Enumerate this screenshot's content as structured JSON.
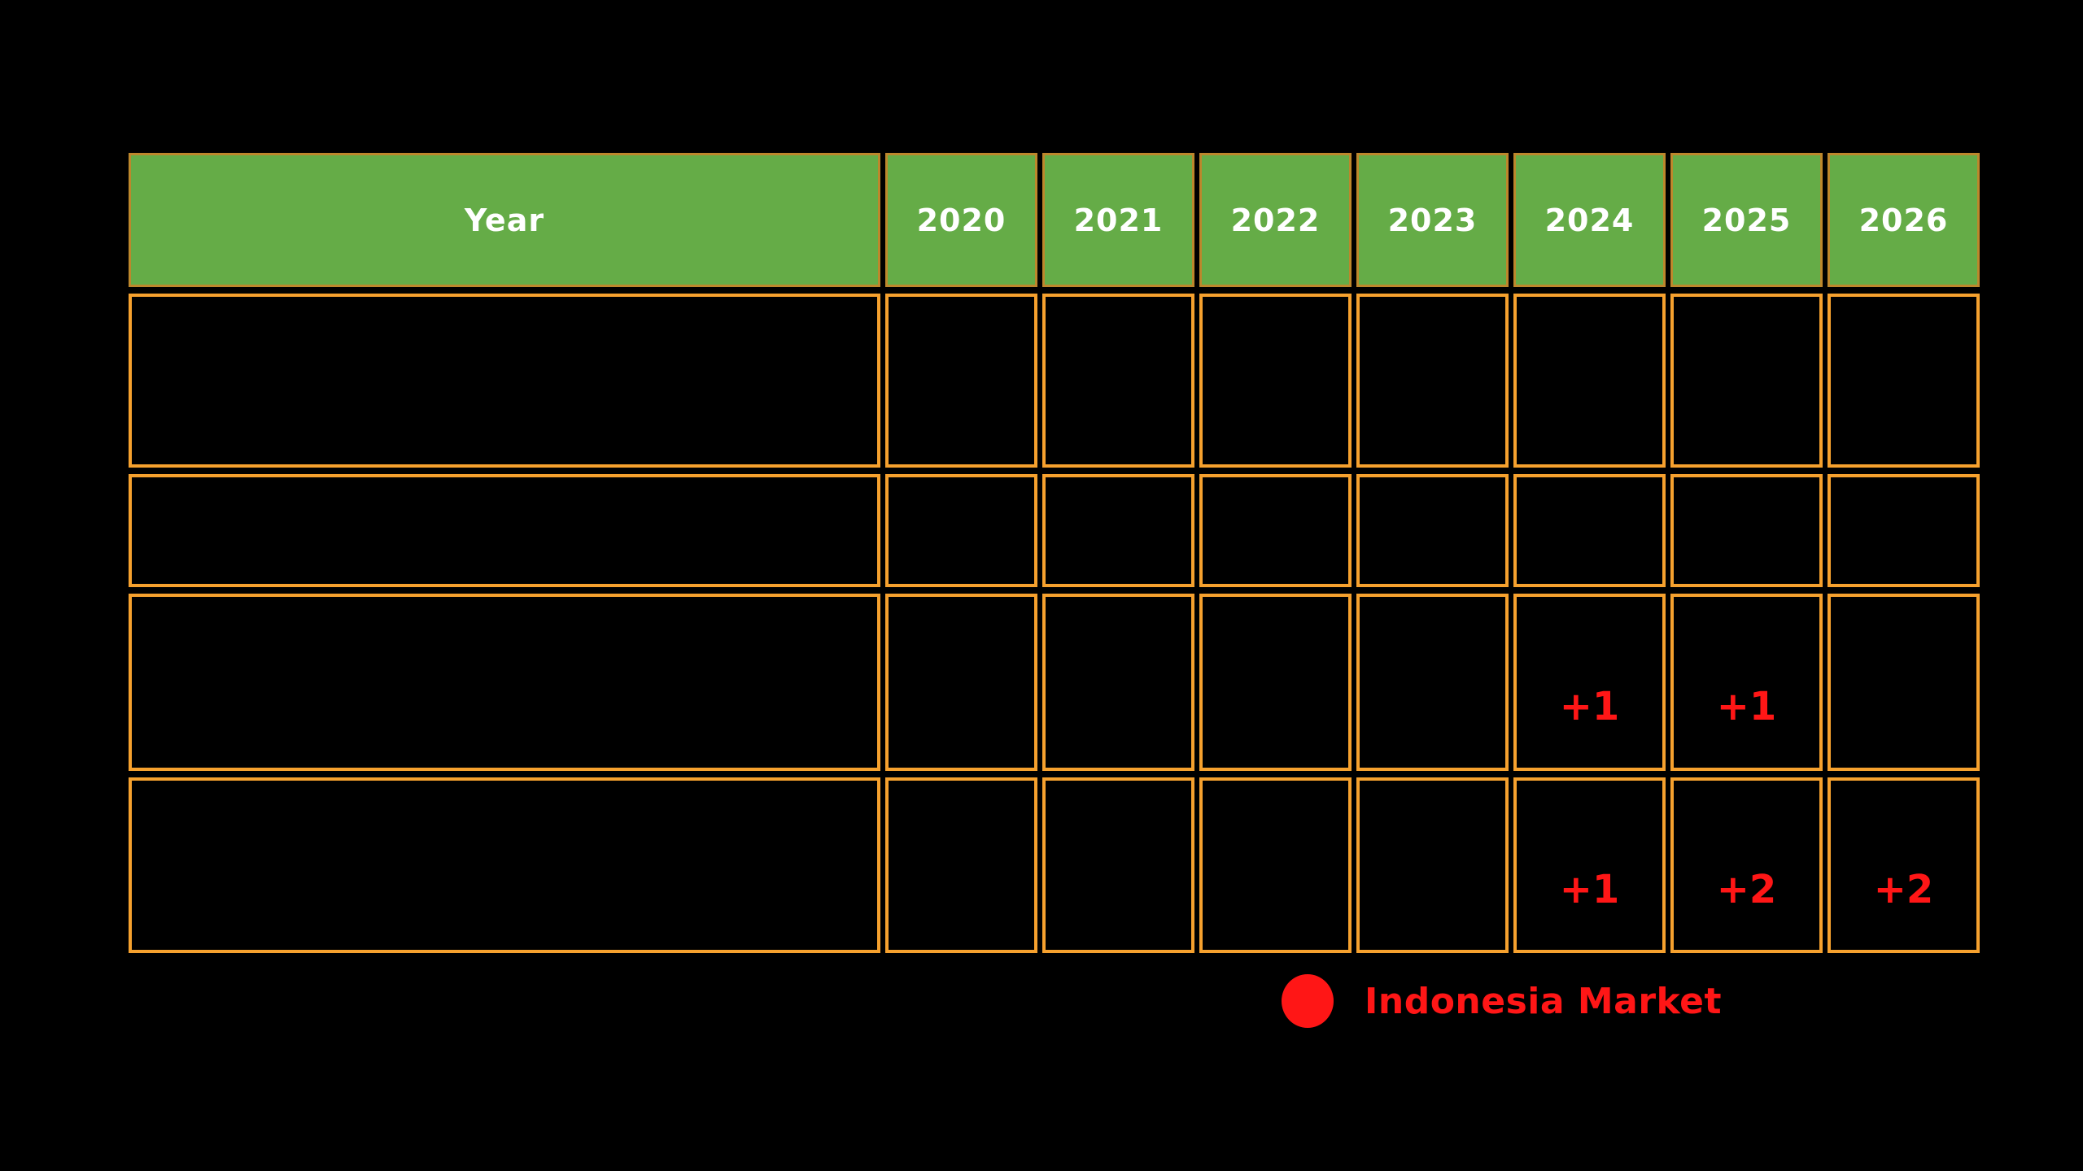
{
  "chart_data": {
    "type": "table",
    "columns": [
      "Year",
      "2020",
      "2021",
      "2022",
      "2023",
      "2024",
      "2025",
      "2026"
    ],
    "rows": [
      [
        "",
        "",
        "",
        "",
        "",
        "",
        "",
        ""
      ],
      [
        "",
        "",
        "",
        "",
        "",
        "",
        "",
        ""
      ],
      [
        "",
        "",
        "",
        "",
        "",
        "+1",
        "+1",
        ""
      ],
      [
        "",
        "",
        "",
        "",
        "",
        "+1",
        "+2",
        "+2"
      ]
    ],
    "legend": [
      {
        "label": "Indonesia Market",
        "marker": "circle",
        "color": "#FF1616"
      }
    ],
    "layout": {
      "grid": "cell-bordered",
      "legend_position": "bottom-center-right"
    }
  },
  "colors": {
    "background": "#000000",
    "header_fill": "#65AC47",
    "header_border": "#BD872C",
    "header_text": "#FFFFFF",
    "cell_border": "#F6A12E",
    "cell_fill": "#000000",
    "highlight_red": "#FF1616"
  }
}
